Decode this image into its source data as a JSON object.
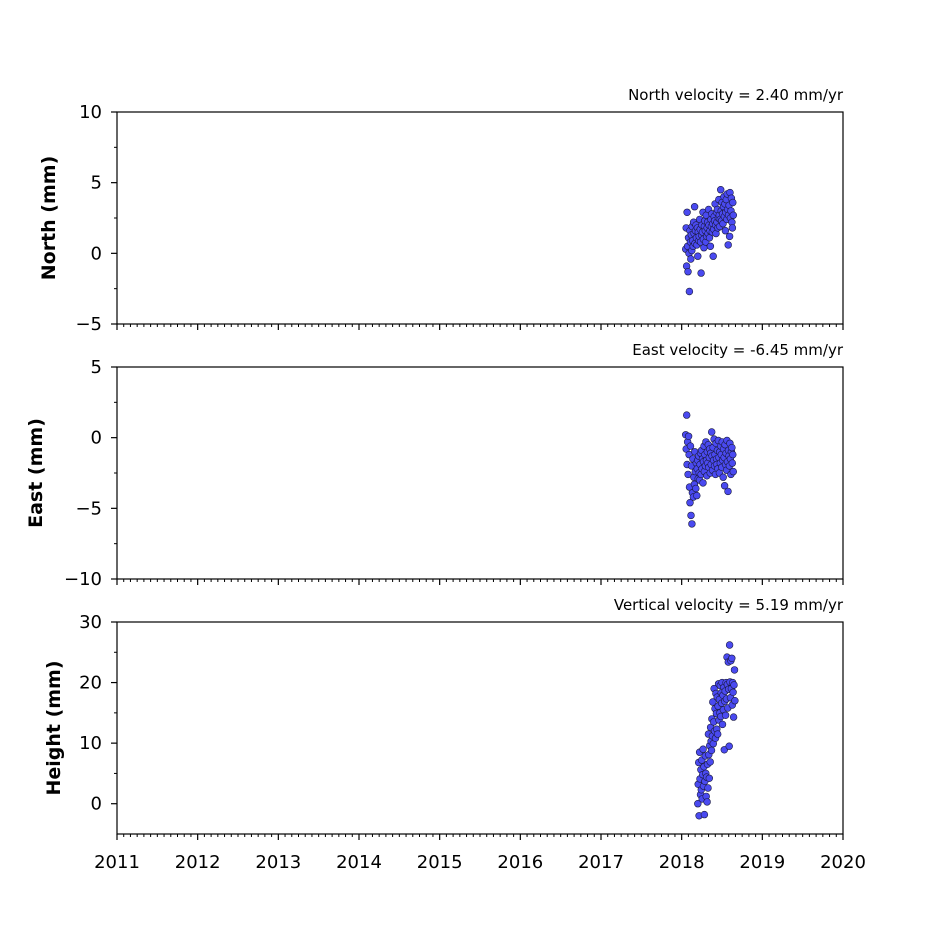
{
  "colors": {
    "marker_fill": "#4a4af0",
    "marker_edge": "#1a1a40"
  },
  "chart_data": [
    {
      "type": "scatter",
      "title": "North velocity = 2.40 mm/yr",
      "xlabel": "",
      "ylabel": "North (mm)",
      "xlim": [
        2011,
        2020
      ],
      "ylim": [
        -5,
        10
      ],
      "yticks": [
        -5,
        0,
        5,
        10
      ],
      "ytick_labels": [
        "−5",
        "0",
        "5",
        "10"
      ],
      "show_xtick_labels": false,
      "x_start": 2018.05,
      "x_end": 2018.64,
      "series": [
        {
          "values": [
            0.3,
            1.8,
            -0.9,
            2.9,
            0.5,
            -1.3,
            1.1,
            0.0,
            -2.7,
            1.6,
            0.8,
            -0.4,
            1.3,
            0.2,
            1.9,
            0.9,
            0.5,
            2.2,
            1.4,
            3.3,
            0.7,
            1.6,
            2.0,
            1.1,
            0.6,
            1.8,
            -0.2,
            1.5,
            0.9,
            1.2,
            2.4,
            1.7,
            0.8,
            -1.4,
            1.3,
            2.0,
            1.5,
            2.9,
            1.0,
            0.4,
            1.9,
            2.3,
            1.6,
            0.8,
            2.7,
            1.2,
            1.8,
            2.2,
            1.4,
            3.1,
            2.0,
            1.1,
            1.6,
            0.5,
            2.4,
            1.9,
            2.8,
            1.5,
            2.1,
            -0.2,
            1.7,
            2.6,
            2.3,
            3.5,
            2.0,
            1.4,
            2.9,
            2.2,
            3.1,
            1.8,
            2.5,
            3.8,
            2.7,
            1.9,
            2.4,
            4.5,
            3.0,
            2.3,
            3.6,
            2.8,
            2.1,
            3.3,
            4.0,
            2.6,
            3.5,
            1.6,
            2.9,
            3.8,
            2.4,
            4.2,
            3.1,
            0.6,
            2.7,
            3.4,
            1.2,
            4.3,
            2.5,
            3.0,
            3.9,
            2.2,
            1.8,
            3.6,
            2.7
          ]
        }
      ]
    },
    {
      "type": "scatter",
      "title": "East velocity = -6.45 mm/yr",
      "xlabel": "",
      "ylabel": "East (mm)",
      "xlim": [
        2011,
        2020
      ],
      "ylim": [
        -10,
        5
      ],
      "yticks": [
        -10,
        -5,
        0,
        5
      ],
      "ytick_labels": [
        "−10",
        "−5",
        "0",
        "5"
      ],
      "show_xtick_labels": false,
      "x_start": 2018.05,
      "x_end": 2018.64,
      "series": [
        {
          "values": [
            0.2,
            -0.8,
            1.6,
            -1.9,
            -0.3,
            -2.6,
            0.1,
            -1.2,
            -3.5,
            -4.6,
            -0.6,
            -5.5,
            -2.0,
            -6.1,
            -3.9,
            -1.5,
            -4.2,
            -2.8,
            -3.3,
            -1.0,
            -2.4,
            -3.6,
            -1.8,
            -4.1,
            -2.2,
            -1.6,
            -2.9,
            -1.3,
            -2.5,
            -3.0,
            -1.9,
            -1.1,
            -2.6,
            -0.9,
            -2.2,
            -1.5,
            -3.2,
            -1.7,
            -0.6,
            -2.4,
            -1.2,
            -2.0,
            -0.3,
            -1.6,
            -2.7,
            -1.0,
            -1.8,
            -0.5,
            -2.1,
            -1.4,
            -0.8,
            -2.5,
            -1.1,
            -1.9,
            0.4,
            -1.3,
            -2.3,
            -0.7,
            -1.6,
            -0.1,
            -2.0,
            -1.2,
            -2.6,
            -0.4,
            -1.5,
            -1.9,
            -0.9,
            -2.2,
            -0.2,
            -1.4,
            -2.5,
            -1.0,
            -1.8,
            -0.6,
            -1.2,
            -2.1,
            -0.3,
            -1.6,
            -2.8,
            -0.8,
            -1.4,
            -3.4,
            -0.5,
            -1.9,
            -1.1,
            -2.3,
            -0.2,
            -1.7,
            -3.8,
            -0.9,
            -1.3,
            -2.0,
            -0.4,
            -1.5,
            -2.6,
            -1.0,
            -0.7,
            -1.8,
            -1.2,
            -2.4
          ]
        }
      ]
    },
    {
      "type": "scatter",
      "title": "Vertical velocity = 5.19 mm/yr",
      "xlabel": "",
      "ylabel": "Height (mm)",
      "xlim": [
        2011,
        2020
      ],
      "ylim": [
        -5,
        30
      ],
      "yticks": [
        0,
        10,
        20,
        30
      ],
      "ytick_labels": [
        "0",
        "10",
        "20",
        "30"
      ],
      "show_xtick_labels": true,
      "xticks": [
        2011,
        2012,
        2013,
        2014,
        2015,
        2016,
        2017,
        2018,
        2019,
        2020
      ],
      "xtick_labels": [
        "2011",
        "2012",
        "2013",
        "2014",
        "2015",
        "2016",
        "2017",
        "2018",
        "2019",
        "2020"
      ],
      "x_start": 2018.2,
      "x_end": 2018.66,
      "series": [
        {
          "values": [
            0.0,
            3.2,
            6.8,
            -2.0,
            8.5,
            4.1,
            1.5,
            5.6,
            2.3,
            7.2,
            0.8,
            4.8,
            9.0,
            2.9,
            6.1,
            -1.8,
            3.7,
            7.9,
            5.0,
            1.2,
            4.4,
            0.3,
            6.5,
            2.6,
            11.5,
            8.1,
            4.2,
            9.6,
            6.9,
            12.6,
            10.3,
            8.8,
            14.0,
            11.2,
            16.8,
            9.9,
            13.5,
            19.0,
            12.0,
            15.7,
            10.8,
            18.2,
            14.9,
            12.3,
            17.6,
            11.5,
            16.1,
            19.8,
            13.8,
            17.2,
            15.0,
            19.5,
            14.4,
            18.3,
            16.6,
            20.0,
            13.1,
            17.9,
            15.5,
            19.2,
            8.9,
            16.9,
            18.6,
            14.6,
            20.0,
            17.3,
            24.2,
            19.7,
            15.8,
            23.4,
            18.9,
            9.5,
            26.2,
            20.1,
            17.5,
            23.6,
            19.0,
            24.0,
            16.3,
            20.0,
            18.4,
            14.3,
            19.6,
            22.1,
            17.0
          ]
        }
      ]
    }
  ]
}
